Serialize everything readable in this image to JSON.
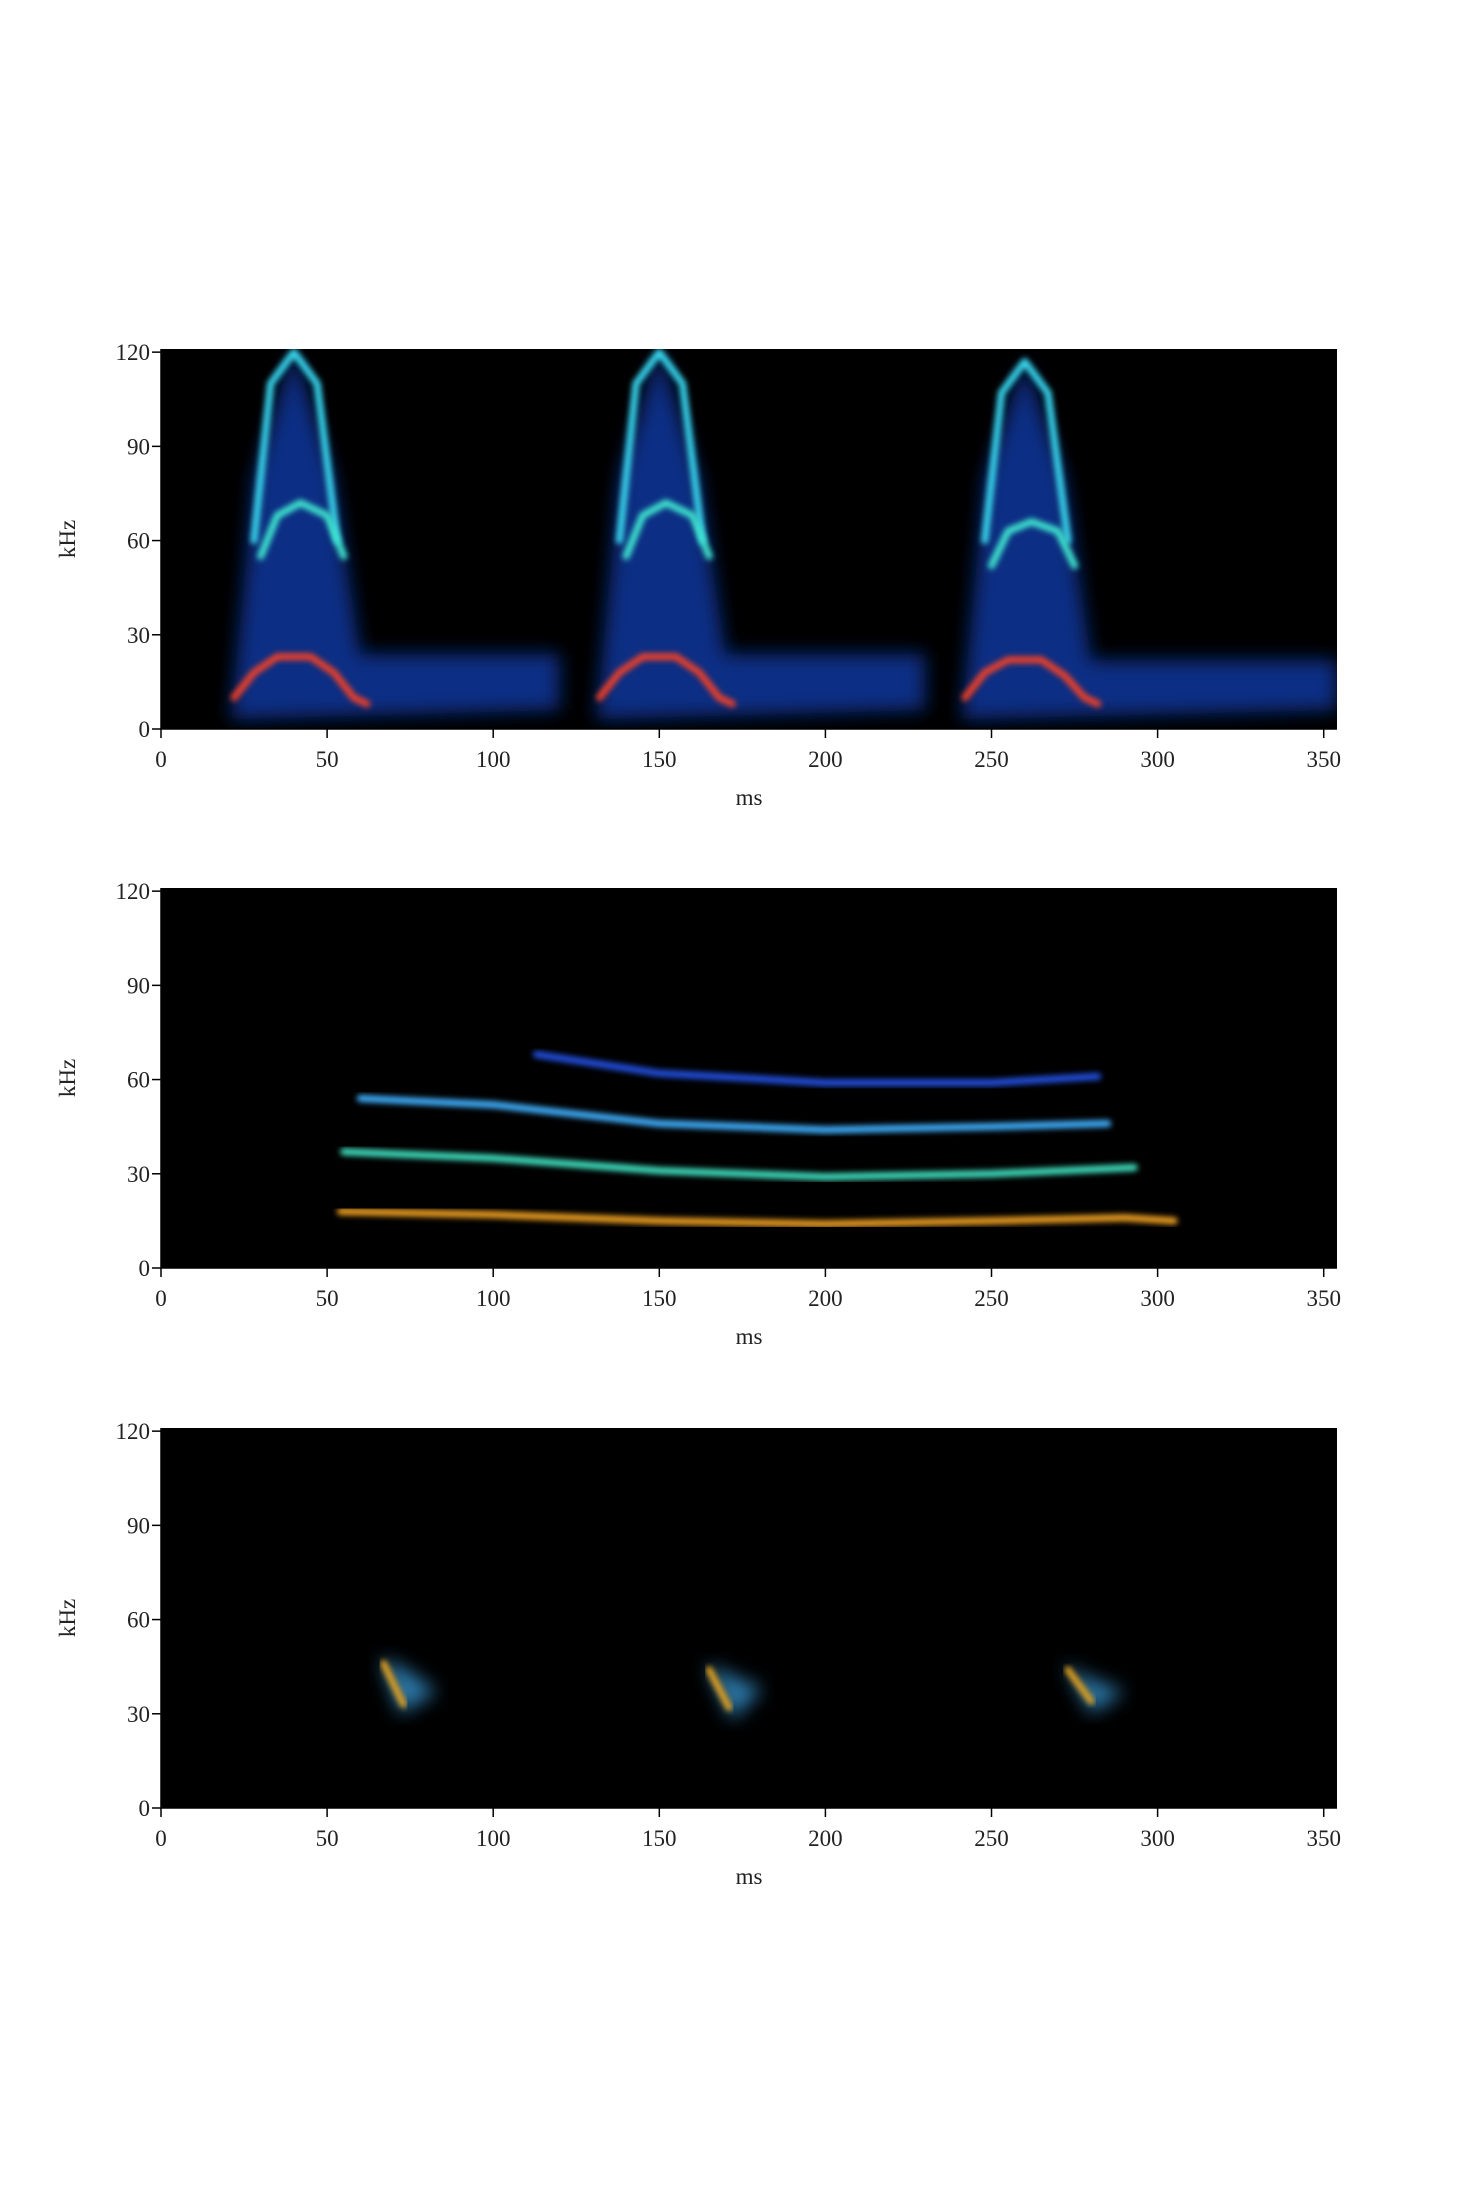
{
  "chart_data": [
    {
      "type": "spectrogram",
      "xlabel": "ms",
      "ylabel": "kHz",
      "background": "#000000",
      "xlim": [
        0,
        354
      ],
      "ylim": [
        0,
        121
      ],
      "xticks": [
        0,
        50,
        100,
        150,
        200,
        250,
        300,
        350
      ],
      "yticks": [
        0,
        30,
        60,
        90,
        120
      ],
      "series": [
        {
          "style": "polygon",
          "color": "#0b3fb0",
          "x": [
            21,
            28,
            40,
            52,
            60,
            120,
            120,
            21
          ],
          "values": [
            3,
            80,
            121,
            80,
            24,
            24,
            6,
            3
          ]
        },
        {
          "style": "line",
          "color": "#38d8f0",
          "x": [
            28,
            33,
            40,
            47,
            53
          ],
          "values": [
            60,
            110,
            120,
            110,
            60
          ]
        },
        {
          "style": "line",
          "color": "#40e8d0",
          "x": [
            30,
            35,
            42,
            50,
            55
          ],
          "values": [
            55,
            68,
            72,
            68,
            55
          ]
        },
        {
          "style": "line",
          "color": "#f04028",
          "x": [
            22,
            28,
            35,
            45,
            52,
            58,
            62
          ],
          "values": [
            10,
            18,
            23,
            23,
            18,
            10,
            8
          ]
        },
        {
          "style": "polygon",
          "color": "#0b3fb0",
          "x": [
            131,
            138,
            150,
            162,
            170,
            230,
            230,
            131
          ],
          "values": [
            3,
            80,
            121,
            80,
            24,
            24,
            6,
            3
          ]
        },
        {
          "style": "line",
          "color": "#38d8f0",
          "x": [
            138,
            143,
            150,
            157,
            163
          ],
          "values": [
            60,
            110,
            120,
            110,
            60
          ]
        },
        {
          "style": "line",
          "color": "#40e8d0",
          "x": [
            140,
            145,
            152,
            160,
            165
          ],
          "values": [
            55,
            68,
            72,
            68,
            55
          ]
        },
        {
          "style": "line",
          "color": "#f04028",
          "x": [
            132,
            138,
            145,
            155,
            162,
            168,
            172
          ],
          "values": [
            10,
            18,
            23,
            23,
            18,
            10,
            8
          ]
        },
        {
          "style": "polygon",
          "color": "#0b3fb0",
          "x": [
            241,
            248,
            260,
            272,
            280,
            354,
            354,
            241
          ],
          "values": [
            3,
            80,
            117,
            80,
            22,
            22,
            6,
            3
          ]
        },
        {
          "style": "line",
          "color": "#38d8f0",
          "x": [
            248,
            253,
            260,
            267,
            273
          ],
          "values": [
            60,
            107,
            117,
            107,
            60
          ]
        },
        {
          "style": "line",
          "color": "#40e8d0",
          "x": [
            250,
            255,
            262,
            270,
            275
          ],
          "values": [
            52,
            63,
            66,
            63,
            52
          ]
        },
        {
          "style": "line",
          "color": "#f04028",
          "x": [
            242,
            248,
            255,
            265,
            272,
            278,
            282
          ],
          "values": [
            10,
            18,
            22,
            22,
            17,
            10,
            8
          ]
        }
      ]
    },
    {
      "type": "spectrogram",
      "xlabel": "ms",
      "ylabel": "kHz",
      "background": "#000000",
      "xlim": [
        0,
        354
      ],
      "ylim": [
        0,
        121
      ],
      "xticks": [
        0,
        50,
        100,
        150,
        200,
        250,
        300,
        350
      ],
      "yticks": [
        0,
        30,
        60,
        90,
        120
      ],
      "series": [
        {
          "style": "line",
          "color": "#f0a020",
          "x": [
            54,
            100,
            150,
            200,
            250,
            290,
            305
          ],
          "values": [
            18,
            17,
            15,
            14,
            15,
            16,
            15
          ]
        },
        {
          "style": "line",
          "color": "#40e0c0",
          "x": [
            55,
            100,
            150,
            200,
            250,
            293
          ],
          "values": [
            37,
            35,
            31,
            29,
            30,
            32
          ]
        },
        {
          "style": "line",
          "color": "#40b0ff",
          "x": [
            60,
            100,
            150,
            200,
            250,
            285
          ],
          "values": [
            54,
            52,
            46,
            44,
            45,
            46
          ]
        },
        {
          "style": "line",
          "color": "#2050e0",
          "x": [
            113,
            150,
            200,
            250,
            282
          ],
          "values": [
            68,
            62,
            59,
            59,
            61
          ]
        }
      ]
    },
    {
      "type": "spectrogram",
      "xlabel": "ms",
      "ylabel": "kHz",
      "background": "#000000",
      "xlim": [
        0,
        354
      ],
      "ylim": [
        0,
        121
      ],
      "xticks": [
        0,
        50,
        100,
        150,
        200,
        250,
        300,
        350
      ],
      "yticks": [
        0,
        30,
        60,
        90,
        120
      ],
      "series": [
        {
          "style": "polygon",
          "color": "#3aa0e0",
          "x": [
            66,
            72,
            83,
            74
          ],
          "values": [
            48,
            30,
            37,
            44
          ]
        },
        {
          "style": "line",
          "color": "#e0a020",
          "x": [
            67,
            73
          ],
          "values": [
            46,
            33
          ]
        },
        {
          "style": "polygon",
          "color": "#3aa0e0",
          "x": [
            164,
            172,
            181,
            172
          ],
          "values": [
            46,
            28,
            38,
            42
          ]
        },
        {
          "style": "line",
          "color": "#e0a020",
          "x": [
            165,
            171
          ],
          "values": [
            44,
            32
          ]
        },
        {
          "style": "polygon",
          "color": "#3aa0e0",
          "x": [
            272,
            280,
            290,
            278
          ],
          "values": [
            46,
            30,
            37,
            42
          ]
        },
        {
          "style": "line",
          "color": "#e0a020",
          "x": [
            273,
            280
          ],
          "values": [
            44,
            34
          ]
        }
      ]
    }
  ]
}
